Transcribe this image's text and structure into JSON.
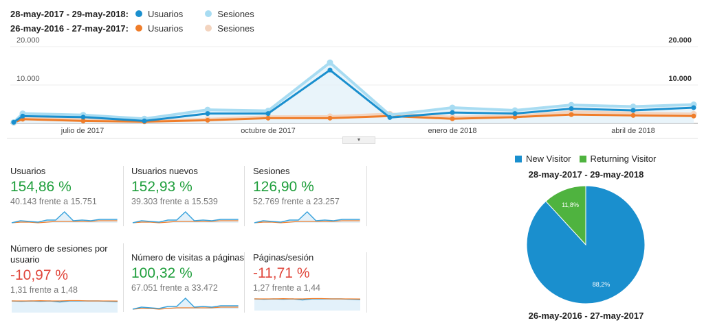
{
  "legend": {
    "current": {
      "range": "28-may-2017 - 29-may-2018:",
      "series": [
        {
          "label": "Usuarios",
          "color": "#1a8fce"
        },
        {
          "label": "Sesiones",
          "color": "#a8dcf2"
        }
      ]
    },
    "previous": {
      "range": "26-may-2016 - 27-may-2017:",
      "series": [
        {
          "label": "Usuarios",
          "color": "#ef7d2a"
        },
        {
          "label": "Sesiones",
          "color": "#f3d4bf"
        }
      ]
    }
  },
  "chart_data": [
    {
      "type": "line",
      "x": [
        "2017-05-28",
        "2017-06",
        "2017-07",
        "2017-08",
        "2017-09",
        "2017-10",
        "2017-11",
        "2017-12",
        "2018-01",
        "2018-02",
        "2018-03",
        "2018-04",
        "2018-05"
      ],
      "x_tick_labels": [
        "julio de 2017",
        "octubre de 2017",
        "enero de 2018",
        "abril de 2018"
      ],
      "y_tick_labels": [
        "20.000",
        "10.000"
      ],
      "ylim": [
        0,
        20000
      ],
      "series": [
        {
          "name": "Usuarios (28-may-2017 - 29-may-2018)",
          "color": "#1a8fce",
          "values": [
            300,
            1900,
            1640,
            650,
            2570,
            2570,
            13900,
            1530,
            2840,
            2570,
            3830,
            3390,
            4100
          ]
        },
        {
          "name": "Sesiones (28-may-2017 - 29-may-2018)",
          "color": "#a8dcf2",
          "values": [
            300,
            2570,
            2190,
            1200,
            3550,
            3280,
            15850,
            2190,
            4100,
            3390,
            4800,
            4370,
            4900
          ]
        },
        {
          "name": "Usuarios (26-may-2016 - 27-may-2017)",
          "color": "#ef7d2a",
          "values": [
            200,
            1090,
            650,
            440,
            820,
            1370,
            1370,
            1910,
            1200,
            1640,
            2300,
            2080,
            1910
          ]
        },
        {
          "name": "Sesiones (26-may-2016 - 27-may-2017)",
          "color": "#f3d4bf",
          "values": [
            200,
            1370,
            980,
            550,
            1090,
            1750,
            1800,
            2460,
            1640,
            1910,
            3000,
            2730,
            2460
          ]
        }
      ]
    },
    {
      "type": "pie",
      "legend": [
        "New Visitor",
        "Returning Visitor"
      ],
      "colors": [
        "#1a8fce",
        "#4fb33f"
      ],
      "values": [
        88.2,
        11.8
      ],
      "labels": [
        "88,2%",
        "11,8%"
      ]
    }
  ],
  "metrics": [
    {
      "name": "Usuarios",
      "change": "154,86 %",
      "trend": "pos",
      "compare": "40.143 frente a 15.751",
      "spark": "spike"
    },
    {
      "name": "Usuarios nuevos",
      "change": "152,93 %",
      "trend": "pos",
      "compare": "39.303 frente a 15.539",
      "spark": "spike"
    },
    {
      "name": "Sesiones",
      "change": "126,90 %",
      "trend": "pos",
      "compare": "52.769 frente a 23.257",
      "spark": "spike"
    },
    {
      "name": "Número de sesiones por usuario",
      "change": "-10,97 %",
      "trend": "neg",
      "compare": "1,31 frente a 1,48",
      "spark": "flat"
    },
    {
      "name": "Número de visitas a páginas",
      "change": "100,32 %",
      "trend": "pos",
      "compare": "67.051 frente a 33.472",
      "spark": "spike"
    },
    {
      "name": "Páginas/sesión",
      "change": "-11,71 %",
      "trend": "neg",
      "compare": "1,27 frente a 1,44",
      "spark": "flat"
    }
  ],
  "pie": {
    "current_range": "28-may-2017 - 29-may-2018",
    "previous_range": "26-may-2016 - 27-may-2017"
  }
}
